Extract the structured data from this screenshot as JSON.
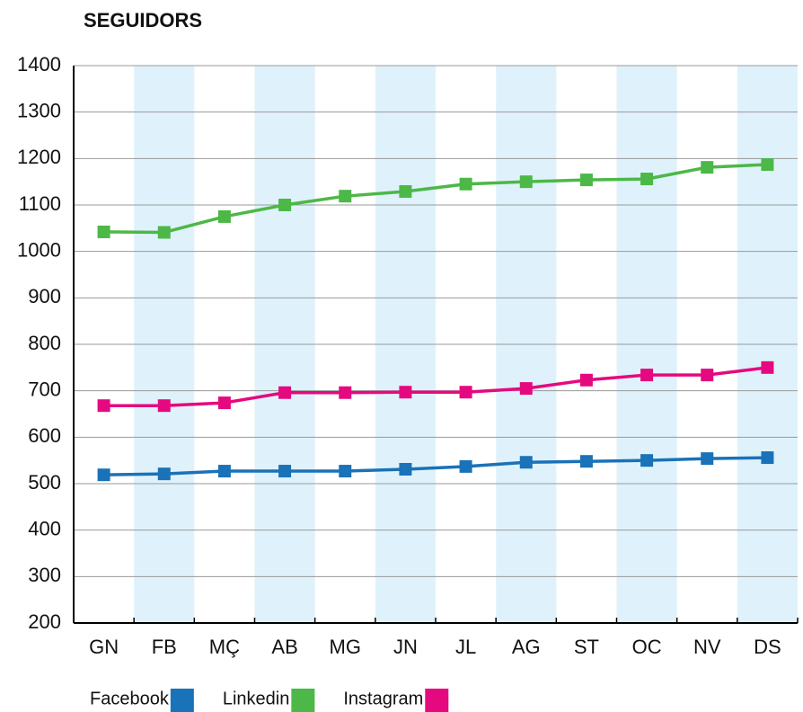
{
  "chart_data": {
    "type": "line",
    "title": "SEGUIDORS",
    "categories": [
      "GN",
      "FB",
      "MÇ",
      "AB",
      "MG",
      "JN",
      "JL",
      "AG",
      "ST",
      "OC",
      "NV",
      "DS"
    ],
    "series": [
      {
        "name": "Facebook",
        "color": "#1a72b8",
        "values": [
          519,
          521,
          527,
          527,
          527,
          531,
          537,
          546,
          548,
          550,
          554,
          556
        ]
      },
      {
        "name": "Linkedin",
        "color": "#4cb847",
        "values": [
          1042,
          1041,
          1075,
          1100,
          1119,
          1129,
          1145,
          1150,
          1154,
          1156,
          1181,
          1187
        ]
      },
      {
        "name": "Instagram",
        "color": "#e5097f",
        "values": [
          668,
          668,
          674,
          696,
          696,
          697,
          697,
          705,
          723,
          734,
          734,
          750
        ]
      }
    ],
    "ylim": [
      200,
      1400
    ],
    "yticks": [
      200,
      300,
      400,
      500,
      600,
      700,
      800,
      900,
      1000,
      1100,
      1200,
      1300,
      1400
    ],
    "grid": true,
    "band_color": "#dff2fb"
  }
}
